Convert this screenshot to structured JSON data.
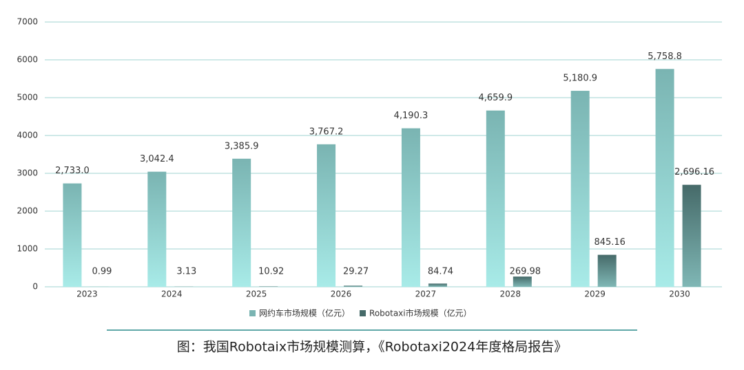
{
  "chart_data": {
    "type": "bar",
    "caption": "图：我国Robotaix市场规模测算，《Robotaxi2024年度格局报告》",
    "categories": [
      "2023",
      "2024",
      "2025",
      "2026",
      "2027",
      "2028",
      "2029",
      "2030"
    ],
    "series": [
      {
        "name": "网约车市场规模（亿元）",
        "color": "#7ab4b2",
        "values": [
          2733.0,
          3042.4,
          3385.9,
          3767.2,
          4190.3,
          4659.9,
          5180.9,
          5758.8
        ],
        "value_labels": [
          "2,733.0",
          "3,042.4",
          "3,385.9",
          "3,767.2",
          "4,190.3",
          "4,659.9",
          "5,180.9",
          "5,758.8"
        ]
      },
      {
        "name": "Robotaxi市场规模（亿元）",
        "color": "#466a69",
        "values": [
          0.99,
          3.13,
          10.92,
          29.27,
          84.74,
          269.98,
          845.16,
          2696.16
        ],
        "value_labels": [
          "0.99",
          "3.13",
          "10.92",
          "29.27",
          "84.74",
          "269.98",
          "845.16",
          "2,696.16"
        ]
      }
    ],
    "ylim": [
      0,
      7000
    ],
    "yticks": [
      0,
      1000,
      2000,
      3000,
      4000,
      5000,
      6000,
      7000
    ],
    "grid": true
  }
}
